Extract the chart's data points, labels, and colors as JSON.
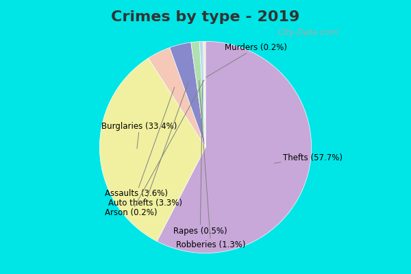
{
  "title": "Crimes by type - 2019",
  "title_fontsize": 16,
  "title_fontweight": "bold",
  "background_outer": "#00e5e5",
  "background_inner": "#d6ecd6",
  "slices": [
    {
      "label": "Thefts (57.7%)",
      "value": 57.7,
      "color": "#c8a8d8"
    },
    {
      "label": "Burglaries (33.4%)",
      "value": 33.4,
      "color": "#f0f0a0"
    },
    {
      "label": "Assaults (3.6%)",
      "value": 3.6,
      "color": "#f5c8b8"
    },
    {
      "label": "Auto thefts (3.3%)",
      "value": 3.3,
      "color": "#8888cc"
    },
    {
      "label": "Robberies (1.3%)",
      "value": 1.3,
      "color": "#b0e0b0"
    },
    {
      "label": "Rapes (0.5%)",
      "value": 0.5,
      "color": "#b8d8f0"
    },
    {
      "label": "Murders (0.2%)",
      "value": 0.2,
      "color": "#c8e8c8"
    },
    {
      "label": "Arson (0.2%)",
      "value": 0.2,
      "color": "#f0e0c8"
    }
  ],
  "label_fontsize": 8.5,
  "watermark": "City-Data.com"
}
